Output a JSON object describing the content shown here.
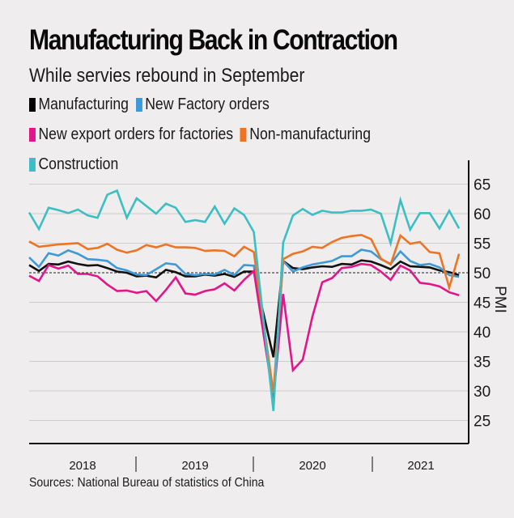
{
  "title": "Manufacturing Back in Contraction",
  "subtitle": "While servies rebound in September",
  "source": "Sources: National Bureau of statistics of China",
  "legend": [
    {
      "label": "Manufacturing",
      "color": "#000000"
    },
    {
      "label": "New Factory orders",
      "color": "#3d9ad6"
    },
    {
      "label": "New export orders for factories",
      "color": "#e0168a"
    },
    {
      "label": "Non-manufacturing",
      "color": "#ee7424"
    },
    {
      "label": "Construction",
      "color": "#3bbfc4"
    }
  ],
  "chart_data": {
    "type": "line",
    "title": "Manufacturing Back in Contraction",
    "subtitle": "While servies rebound in September",
    "xlabel": "",
    "ylabel": "PMI",
    "ylim": [
      22,
      67
    ],
    "yticks": [
      25,
      30,
      35,
      40,
      45,
      50,
      55,
      60,
      65
    ],
    "year_labels": [
      "2018",
      "2019",
      "2020",
      "2021"
    ],
    "x_start": "Jan 2018",
    "x_end": "Sep 2021",
    "reference_line": 50,
    "grid": true,
    "legend_position": "top-left",
    "gap_months": [
      24
    ],
    "series": [
      {
        "name": "Manufacturing",
        "color": "#111111",
        "values": [
          51.3,
          50.3,
          51.5,
          51.4,
          51.9,
          51.5,
          51.2,
          51.3,
          50.8,
          50.2,
          50.0,
          49.4,
          49.5,
          49.2,
          50.5,
          50.1,
          49.4,
          49.4,
          49.7,
          49.5,
          49.8,
          49.3,
          50.2,
          50.2,
          null,
          35.7,
          52.0,
          50.8,
          50.6,
          50.9,
          51.1,
          51.0,
          51.5,
          51.4,
          52.1,
          51.9,
          51.3,
          50.6,
          51.9,
          51.1,
          51.0,
          50.9,
          50.4,
          50.1,
          49.6
        ]
      },
      {
        "name": "New Factory orders",
        "color": "#3d9ad6",
        "values": [
          52.6,
          51.0,
          53.3,
          52.9,
          53.8,
          53.2,
          52.3,
          52.2,
          52.0,
          50.8,
          50.4,
          49.7,
          49.6,
          50.6,
          51.6,
          51.4,
          49.8,
          49.6,
          49.8,
          49.7,
          50.5,
          49.6,
          51.3,
          51.2,
          null,
          29.3,
          52.0,
          50.2,
          50.9,
          51.4,
          51.7,
          52.0,
          52.8,
          52.8,
          53.9,
          53.6,
          52.3,
          51.5,
          53.6,
          52.0,
          51.3,
          51.5,
          50.9,
          49.6,
          49.3
        ]
      },
      {
        "name": "New export orders for factories",
        "color": "#e0168a",
        "values": [
          49.5,
          48.6,
          51.3,
          50.7,
          51.2,
          49.8,
          49.8,
          49.4,
          48.0,
          46.9,
          47.0,
          46.6,
          46.9,
          45.2,
          47.1,
          49.2,
          46.5,
          46.3,
          46.9,
          47.2,
          48.2,
          47.0,
          48.8,
          50.3,
          null,
          28.7,
          46.4,
          33.5,
          35.3,
          42.6,
          48.4,
          49.1,
          50.8,
          51.0,
          51.5,
          51.3,
          50.2,
          48.8,
          51.2,
          50.4,
          48.3,
          48.1,
          47.7,
          46.7,
          46.2
        ]
      },
      {
        "name": "Non-manufacturing",
        "color": "#ee7424",
        "values": [
          55.3,
          54.4,
          54.6,
          54.8,
          54.9,
          55.0,
          54.0,
          54.2,
          54.9,
          53.9,
          53.4,
          53.8,
          54.7,
          54.3,
          54.8,
          54.3,
          54.3,
          54.2,
          53.7,
          53.8,
          53.7,
          52.8,
          54.4,
          53.5,
          null,
          29.6,
          52.3,
          53.2,
          53.6,
          54.4,
          54.2,
          55.2,
          55.9,
          56.2,
          56.4,
          55.7,
          52.4,
          51.4,
          56.3,
          54.9,
          55.2,
          53.5,
          53.3,
          47.5,
          53.2
        ]
      },
      {
        "name": "Construction",
        "color": "#3bbfc4",
        "values": [
          60.2,
          57.4,
          61.0,
          60.6,
          60.1,
          60.7,
          59.7,
          59.3,
          63.2,
          63.9,
          59.3,
          62.6,
          61.3,
          60.0,
          61.7,
          61.0,
          58.6,
          58.9,
          58.6,
          61.2,
          58.3,
          60.9,
          59.8,
          56.9,
          null,
          26.6,
          55.1,
          59.7,
          60.8,
          59.8,
          60.5,
          60.2,
          60.2,
          60.5,
          60.5,
          60.7,
          60.0,
          55.0,
          62.3,
          57.3,
          60.1,
          60.1,
          57.5,
          60.5,
          57.5
        ]
      }
    ]
  }
}
